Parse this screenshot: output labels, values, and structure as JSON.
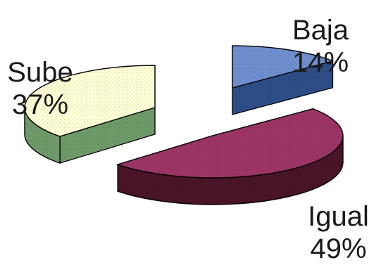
{
  "chart_data": {
    "type": "pie",
    "categories": [
      "Baja",
      "Sube",
      "Igual"
    ],
    "values": [
      14,
      37,
      49
    ],
    "labels": [
      {
        "name": "Baja",
        "pct": "14%"
      },
      {
        "name": "Sube",
        "pct": "37%"
      },
      {
        "name": "Igual",
        "pct": "49%"
      }
    ],
    "colors": {
      "Baja": {
        "top": "#6f8fcf",
        "side": "#2e4e88"
      },
      "Sube": {
        "top": "#ffffd6",
        "side": "#6f9a6a"
      },
      "Igual": {
        "top": "#9c3566",
        "side": "#4a1428"
      }
    },
    "exploded": true,
    "three_d": true
  }
}
